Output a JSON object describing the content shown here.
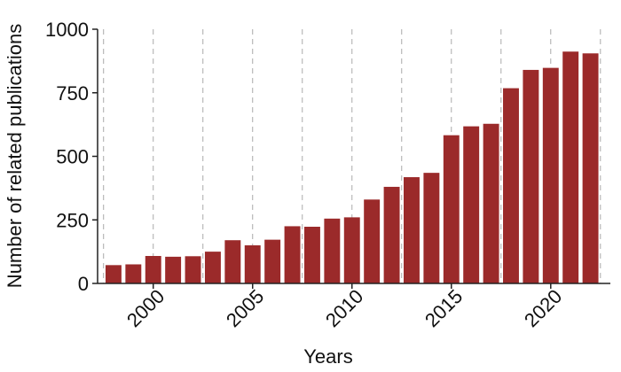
{
  "chart_data": {
    "type": "bar",
    "x_label": "Years",
    "y_label": "Number of related publications",
    "x": [
      1998,
      1999,
      2000,
      2001,
      2002,
      2003,
      2004,
      2005,
      2006,
      2007,
      2008,
      2009,
      2010,
      2011,
      2012,
      2013,
      2014,
      2015,
      2016,
      2017,
      2018,
      2019,
      2020,
      2021,
      2022
    ],
    "values": [
      72,
      75,
      108,
      105,
      107,
      125,
      170,
      150,
      172,
      225,
      223,
      255,
      260,
      330,
      380,
      418,
      435,
      583,
      618,
      628,
      768,
      840,
      848,
      912,
      905
    ],
    "color": "#9b2a2a",
    "xlim": [
      1997.2,
      2023
    ],
    "xticks": [
      2000,
      2005,
      2010,
      2015,
      2020
    ],
    "x_grid_lines": [
      1997.5,
      2000,
      2002.5,
      2005,
      2007.5,
      2010,
      2012.5,
      2015,
      2017.5,
      2020,
      2022.5
    ],
    "ylim": [
      0,
      1000
    ],
    "yticks": [
      0,
      250,
      500,
      750,
      1000
    ]
  }
}
